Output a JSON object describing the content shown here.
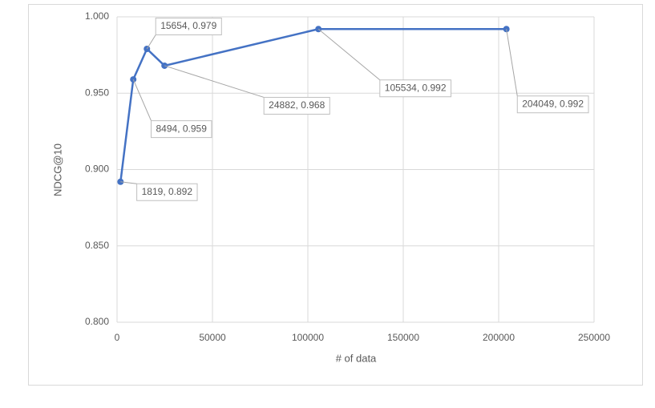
{
  "chart_data": {
    "type": "line",
    "x_label": "# of data",
    "y_label": "NDCG@10",
    "series": [
      {
        "color": "#4472c4",
        "x": [
          1819,
          8494,
          15654,
          24882,
          105534,
          204049
        ],
        "values": [
          0.892,
          0.959,
          0.979,
          0.968,
          0.992,
          0.992
        ],
        "value_labels": [
          "1819, 0.892",
          "8494, 0.959",
          "15654, 0.979",
          "24882, 0.968",
          "105534, 0.992",
          "204049, 0.992"
        ]
      }
    ],
    "xlim": [
      0,
      250000
    ],
    "xticks": [
      0,
      50000,
      100000,
      150000,
      200000,
      250000
    ],
    "ylim": [
      0.8,
      1.0
    ],
    "yticks": [
      {
        "value": 0.8,
        "label": "0.800"
      },
      {
        "value": 0.85,
        "label": "0.850"
      },
      {
        "value": 0.9,
        "label": "0.900"
      },
      {
        "value": 0.95,
        "label": "0.950"
      },
      {
        "value": 1.0,
        "label": "1.000"
      }
    ],
    "grid": true
  }
}
